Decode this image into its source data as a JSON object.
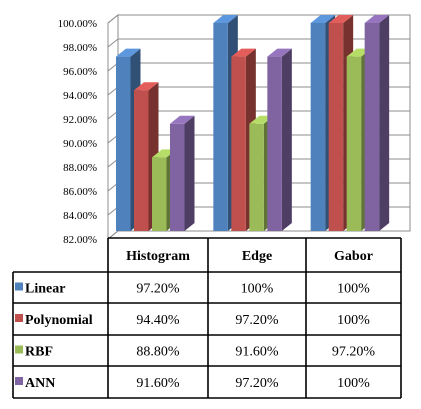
{
  "chart_data": {
    "type": "bar",
    "style": "3d-clustered-column",
    "categories": [
      "Histogram",
      "Edge",
      "Gabor"
    ],
    "series": [
      {
        "name": "Linear",
        "values": [
          97.2,
          100,
          100
        ],
        "labels": [
          "97.20%",
          "100%",
          "100%"
        ],
        "color": "#4F81BD"
      },
      {
        "name": "Polynomial",
        "values": [
          94.4,
          97.2,
          100
        ],
        "labels": [
          "94.40%",
          "97.20%",
          "100%"
        ],
        "color": "#C0504D"
      },
      {
        "name": "RBF",
        "values": [
          88.8,
          91.6,
          97.2
        ],
        "labels": [
          "88.80%",
          "91.60%",
          "97.20%"
        ],
        "color": "#9BBB59"
      },
      {
        "name": "ANN",
        "values": [
          91.6,
          97.2,
          100
        ],
        "labels": [
          "91.60%",
          "97.20%",
          "100%"
        ],
        "color": "#8064A2"
      }
    ],
    "ylim": [
      82,
      100
    ],
    "yticks": [
      "82.00%",
      "84.00%",
      "86.00%",
      "88.00%",
      "90.00%",
      "92.00%",
      "94.00%",
      "96.00%",
      "98.00%",
      "100.00%"
    ],
    "grid": true,
    "legend": "data-table"
  }
}
